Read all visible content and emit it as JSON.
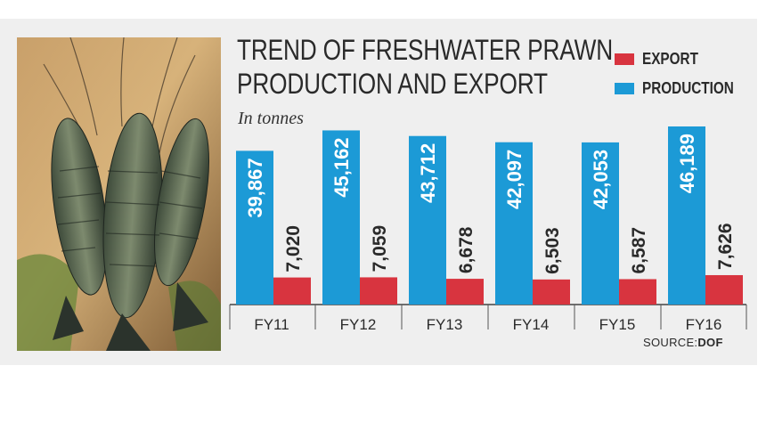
{
  "chart_data": {
    "type": "bar",
    "title_lines": [
      "TREND OF FRESHWATER PRAWN",
      "PRODUCTION AND EXPORT"
    ],
    "unit": "In tonnes",
    "categories": [
      "FY11",
      "FY12",
      "FY13",
      "FY14",
      "FY15",
      "FY16"
    ],
    "series": [
      {
        "name": "PRODUCTION",
        "color": "#1c9ad6",
        "values": [
          39867,
          45162,
          43712,
          42097,
          42053,
          46189
        ],
        "labels": [
          "39,867",
          "45,162",
          "43,712",
          "42,097",
          "42,053",
          "46,189"
        ]
      },
      {
        "name": "EXPORT",
        "color": "#d8343f",
        "values": [
          7020,
          7059,
          6678,
          6503,
          6587,
          7626
        ],
        "labels": [
          "7,020",
          "7,059",
          "6,678",
          "6,503",
          "6,587",
          "7,626"
        ]
      }
    ],
    "legend_order": [
      "EXPORT",
      "PRODUCTION"
    ],
    "legend_position": "top-right",
    "source_label": "SOURCE:",
    "source_name": "DOF"
  },
  "photo": {
    "subject": "freshwater-prawns-photo"
  }
}
